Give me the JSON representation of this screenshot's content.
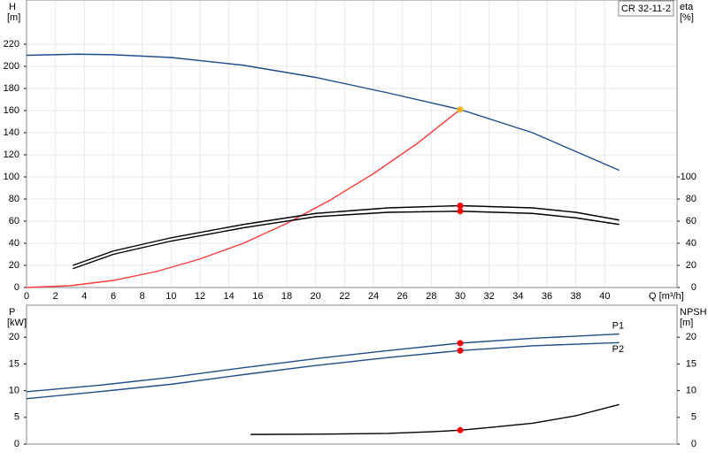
{
  "chart_data": [
    {
      "type": "line",
      "title": "CR 32-11-2",
      "xlabel": "Q [m³/h]",
      "ylabel": "H",
      "yunit": "[m]",
      "y2label": "eta",
      "y2unit": "[%]",
      "xlim": [
        0,
        45
      ],
      "xticks": [
        0,
        2,
        4,
        6,
        8,
        10,
        12,
        14,
        16,
        18,
        20,
        22,
        24,
        26,
        28,
        30,
        32,
        34,
        36,
        38,
        40
      ],
      "ylim": [
        0,
        260
      ],
      "yticks": [
        0,
        20,
        40,
        60,
        80,
        100,
        120,
        140,
        160,
        180,
        200,
        220
      ],
      "y2lim": [
        0,
        260
      ],
      "y2ticks": [
        0,
        20,
        40,
        60,
        80,
        100
      ],
      "grid": true,
      "series": [
        {
          "color": "#1f4e8c",
          "x": [
            0,
            3.5,
            6,
            10,
            15,
            20,
            25,
            30,
            35,
            38,
            41
          ],
          "values": [
            210,
            211,
            210.5,
            208,
            201,
            190,
            176,
            161,
            140,
            123,
            106
          ]
        },
        {
          "color": "#ff3b3b",
          "x": [
            0,
            3,
            6,
            9,
            12,
            15,
            18,
            21,
            24,
            27,
            30
          ],
          "values": [
            0,
            1.6,
            6.4,
            14.5,
            25.8,
            40,
            58,
            79,
            103,
            130,
            161
          ]
        },
        {
          "color": "#000000",
          "axis": "y2",
          "x": [
            3.2,
            6,
            10,
            15,
            20,
            25,
            30,
            35,
            38,
            41
          ],
          "values": [
            20,
            33,
            45,
            57,
            67,
            72,
            74,
            72,
            68,
            61
          ]
        },
        {
          "color": "#000000",
          "axis": "y2",
          "x": [
            3.2,
            6,
            10,
            15,
            20,
            25,
            30,
            35,
            38,
            41
          ],
          "values": [
            17,
            30,
            42,
            54,
            64,
            68,
            69,
            67,
            63,
            57
          ]
        }
      ],
      "points": [
        {
          "x": 30,
          "y": 161,
          "color": "#f7b21a"
        },
        {
          "x": 30,
          "y": 74,
          "axis": "y2",
          "color": "#ff0000"
        },
        {
          "x": 30,
          "y": 69,
          "axis": "y2",
          "color": "#ff0000"
        }
      ]
    },
    {
      "type": "line",
      "ylabel": "P",
      "yunit": "[kW]",
      "y2label": "NPSH",
      "y2unit": "[m]",
      "xlim": [
        0,
        45
      ],
      "ylim": [
        0,
        26
      ],
      "yticks": [
        0,
        5,
        10,
        15,
        20
      ],
      "y2lim": [
        0,
        26
      ],
      "y2ticks": [
        0,
        5,
        10,
        15,
        20
      ],
      "series": [
        {
          "name": "P1",
          "color": "#1f4e8c",
          "x": [
            0,
            5,
            10,
            15,
            20,
            25,
            30,
            35,
            41
          ],
          "values": [
            9.8,
            11,
            12.5,
            14.3,
            16,
            17.5,
            18.9,
            19.8,
            20.6
          ]
        },
        {
          "name": "P2",
          "color": "#1f4e8c",
          "x": [
            0,
            5,
            10,
            15,
            20,
            25,
            30,
            35,
            41
          ],
          "values": [
            8.5,
            9.8,
            11.2,
            13,
            14.7,
            16.2,
            17.5,
            18.4,
            19
          ]
        },
        {
          "color": "#000000",
          "axis": "y2",
          "x": [
            15.5,
            20,
            25,
            28,
            30,
            32,
            35,
            38,
            41
          ],
          "values": [
            1.8,
            1.85,
            2.0,
            2.3,
            2.6,
            3.1,
            3.9,
            5.3,
            7.4
          ]
        }
      ],
      "points": [
        {
          "x": 30,
          "y": 18.9,
          "color": "#ff0000"
        },
        {
          "x": 30,
          "y": 17.5,
          "color": "#ff0000"
        },
        {
          "x": 30,
          "y": 2.6,
          "axis": "y2",
          "color": "#ff0000"
        }
      ]
    }
  ]
}
